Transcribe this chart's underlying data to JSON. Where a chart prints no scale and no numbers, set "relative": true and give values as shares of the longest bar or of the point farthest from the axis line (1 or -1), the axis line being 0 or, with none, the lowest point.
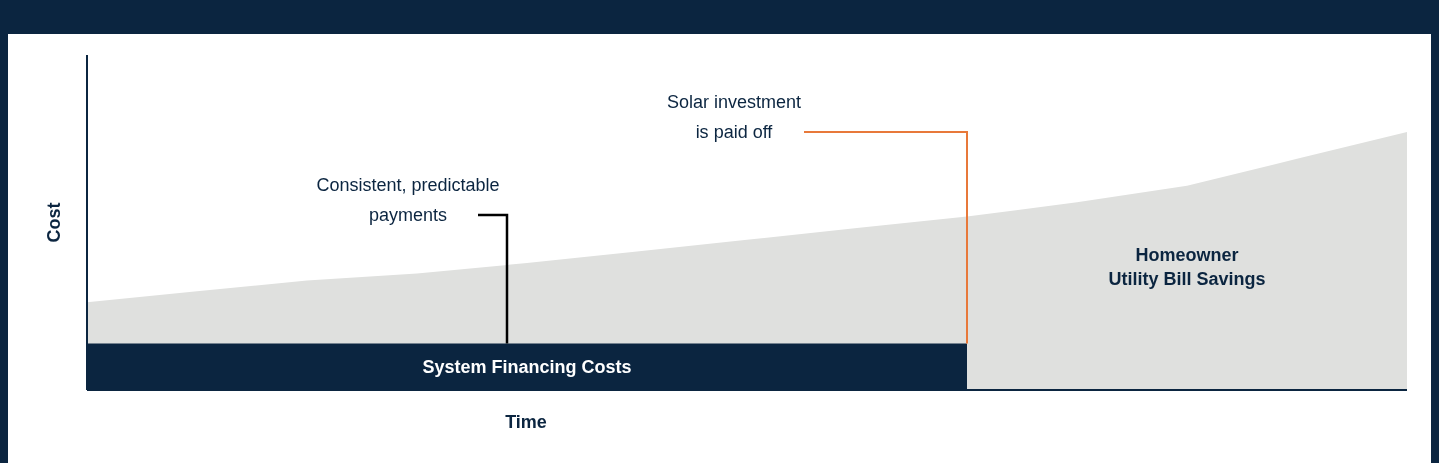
{
  "chart_data": {
    "type": "area",
    "relative": true,
    "xlabel": "Time",
    "ylabel": "Cost",
    "categories": [
      null,
      null,
      null,
      null,
      null,
      null,
      null,
      null,
      null,
      null,
      null,
      null,
      null
    ],
    "series": [
      {
        "name": "Homeowner\nUtility Bill Savings",
        "color": "#dfe0de",
        "values": [
          0.34,
          0.383,
          0.424,
          0.452,
          0.492,
          0.537,
          0.582,
          0.628,
          0.672,
          0.728,
          0.792,
          0.896,
          1
        ]
      },
      {
        "name": "System Financing Costs",
        "color": "#0b2540",
        "values": [
          0.18,
          0.18,
          0.18,
          0.18,
          0.18,
          0.18,
          0.18,
          0.18,
          0.18,
          null,
          null,
          null,
          null
        ]
      }
    ],
    "annotations": [
      "Consistent, predictable\npayments",
      "Solar investment\nis paid off"
    ]
  }
}
